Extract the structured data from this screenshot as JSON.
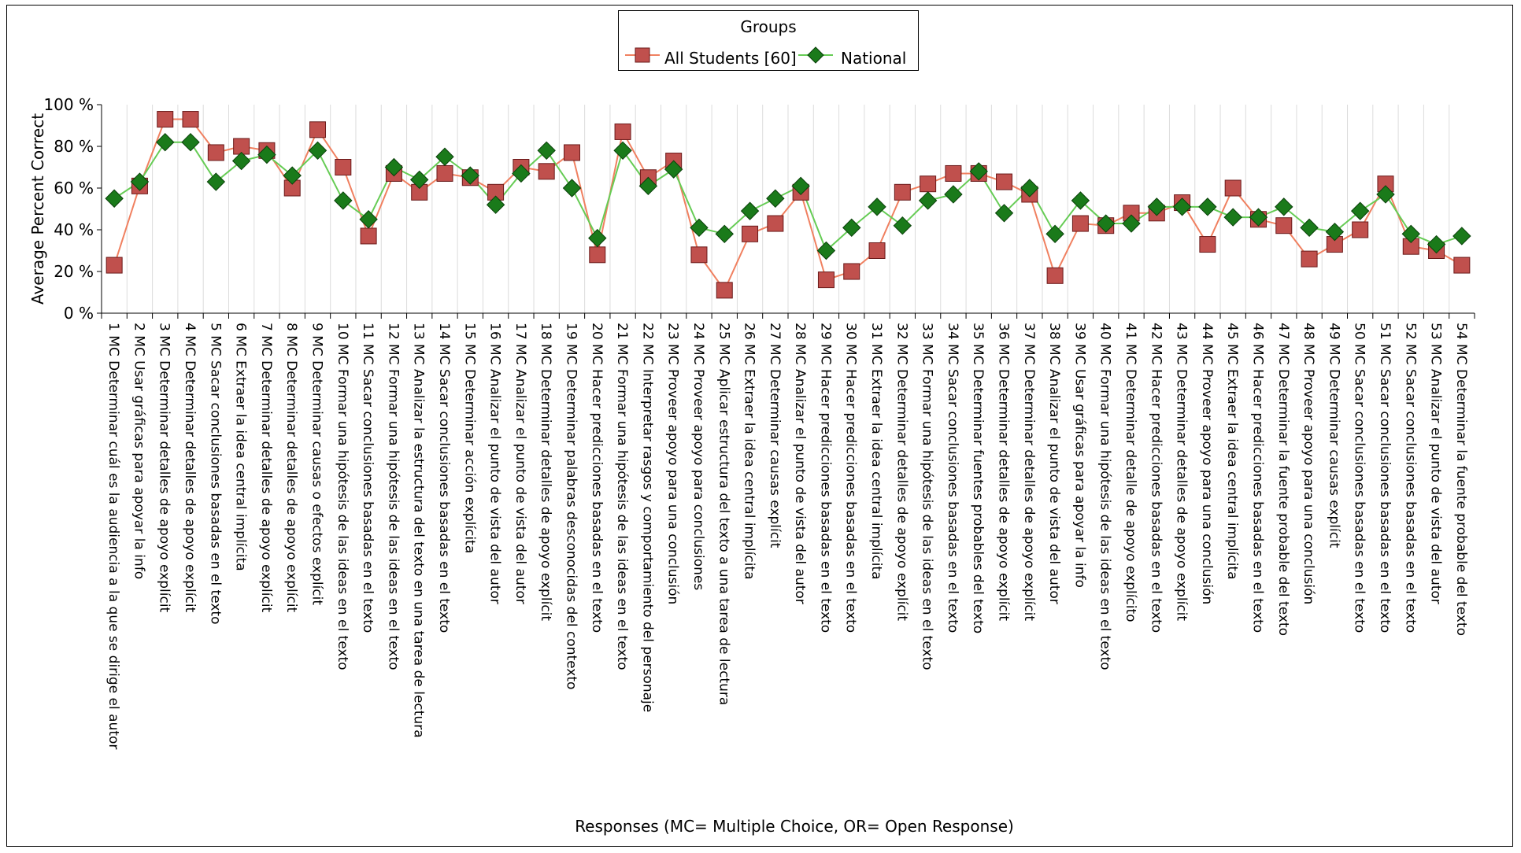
{
  "chart_data": {
    "type": "line",
    "legend": {
      "title": "Groups",
      "placement": "top-center"
    },
    "ylabel": "Average Percent Correct",
    "xlabel": "Responses (MC= Multiple Choice, OR= Open Response)",
    "ylim": [
      0,
      100
    ],
    "yticks": [
      "0 %",
      "20 %",
      "40 %",
      "60 %",
      "80 %",
      "100 %"
    ],
    "grid": {
      "vertical": true,
      "horizontal": false
    },
    "categories": [
      "1 MC Determinar cuál es la audiencia a la que se dirige el autor",
      "2 MC Usar gráficas para apoyar la info",
      "3 MC Determinar detalles de apoyo explícit",
      "4 MC Determinar detalles de apoyo explícit",
      "5 MC Sacar conclusiones basadas en el texto",
      "6 MC Extraer la idea central implícita",
      "7 MC Determinar detalles de apoyo explícit",
      "8 MC Determinar detalles de apoyo explícit",
      "9 MC Determinar causas o efectos explícit",
      "10 MC Formar una hipótesis de las ideas en el texto",
      "11 MC Sacar conclusiones basadas en el texto",
      "12 MC Formar una hipótesis de las ideas en el texto",
      "13 MC Analizar la estructura del texto en una tarea de lectura",
      "14 MC Sacar conclusiones basadas en el texto",
      "15 MC Determinar acción explícita",
      "16 MC Analizar el punto de vista del autor",
      "17 MC Analizar el punto de vista del autor",
      "18 MC Determinar detalles de apoyo explícit",
      "19 MC Determinar palabras desconocidas del contexto",
      "20 MC Hacer predicciones basadas en el texto",
      "21 MC Formar una hipótesis de las ideas en el texto",
      "22 MC Interpretar rasgos y comportamiento del personaje",
      "23 MC Proveer apoyo para una conclusión",
      "24 MC Proveer apoyo para conclusiones",
      "25 MC Aplicar estructura del texto a una tarea de lectura",
      "26 MC Extraer la idea central implícita",
      "27 MC Determinar causas explícit",
      "28 MC Analizar el punto de vista del autor",
      "29 MC Hacer predicciones basadas en el texto",
      "30 MC Hacer predicciones basadas en el texto",
      "31 MC Extraer la idea central implícita",
      "32 MC Determinar detalles de apoyo explícit",
      "33 MC Formar una hipótesis de las ideas en el texto",
      "34 MC Sacar conclusiones basadas en el texto",
      "35 MC Determinar fuentes probables del texto",
      "36 MC Determinar detalles de apoyo explícit",
      "37 MC Determinar detalles de apoyo explícit",
      "38 MC Analizar el punto de vista del autor",
      "39 MC Usar gráficas para apoyar la info",
      "40 MC Formar una hipótesis de las ideas en el texto",
      "41 MC Determinar detalle de apoyo explícito",
      "42 MC Hacer predicciones basadas en el texto",
      "43 MC Determinar detalles de apoyo explícit",
      "44 MC Proveer apoyo para una conclusión",
      "45 MC Extraer la idea central implícita",
      "46 MC Hacer predicciones basadas en el texto",
      "47 MC Determinar la fuente probable del texto",
      "48 MC Proveer apoyo para una conclusión",
      "49 MC Determinar causas explícit",
      "50 MC Sacar conclusiones basadas en el texto",
      "51 MC Sacar conclusiones basadas en el texto",
      "52 MC Sacar conclusiones basadas en el texto",
      "53 MC Analizar el punto de vista del autor",
      "54 MC Determinar la fuente probable del texto"
    ],
    "series": [
      {
        "name": "All Students [60]",
        "color": "#c0504d",
        "line_color": "#f08060",
        "marker": "square",
        "values": [
          23,
          61,
          93,
          93,
          77,
          80,
          78,
          60,
          88,
          70,
          37,
          67,
          58,
          67,
          65,
          58,
          70,
          68,
          77,
          28,
          87,
          65,
          73,
          28,
          11,
          38,
          43,
          58,
          16,
          20,
          30,
          58,
          62,
          67,
          67,
          63,
          57,
          18,
          43,
          42,
          48,
          48,
          53,
          33,
          60,
          45,
          42,
          26,
          33,
          40,
          62,
          32,
          30,
          23
        ]
      },
      {
        "name": "National",
        "color": "#1a7a1a",
        "line_color": "#66cc55",
        "marker": "diamond",
        "values": [
          55,
          63,
          82,
          82,
          63,
          73,
          76,
          66,
          78,
          54,
          45,
          70,
          64,
          75,
          66,
          52,
          67,
          78,
          60,
          36,
          78,
          61,
          69,
          41,
          38,
          49,
          55,
          61,
          30,
          41,
          51,
          42,
          54,
          57,
          68,
          48,
          60,
          38,
          54,
          43,
          43,
          51,
          51,
          51,
          46,
          46,
          51,
          41,
          39,
          49,
          57,
          38,
          33,
          37
        ]
      }
    ]
  }
}
